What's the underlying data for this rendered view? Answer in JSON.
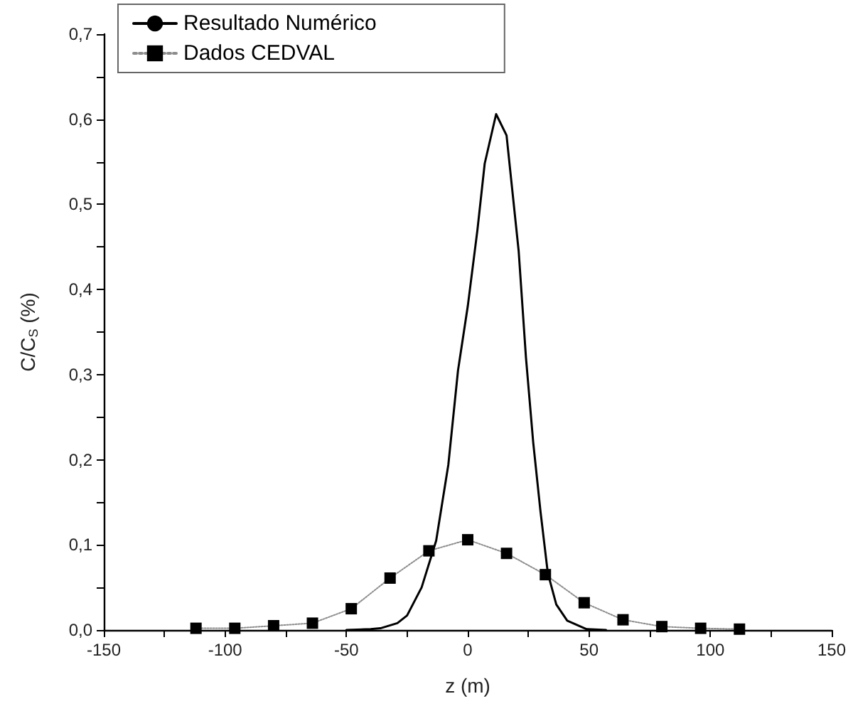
{
  "chart_data": {
    "type": "line",
    "xlabel": "z (m)",
    "ylabel": "C/C$_{S}$ (%)",
    "xlim": [
      -150,
      150
    ],
    "ylim": [
      0,
      0.7
    ],
    "xticks": [
      -150,
      {
        "value": -125,
        "label": null
      },
      -100,
      {
        "value": -75,
        "label": null
      },
      -50,
      {
        "value": -25,
        "label": null
      },
      0,
      {
        "value": 25,
        "label": null
      },
      50,
      {
        "value": 75,
        "label": null
      },
      100,
      {
        "value": 125,
        "label": null
      },
      150
    ],
    "yticks": [
      {
        "value": 0,
        "label": "0,0"
      },
      {
        "value": 0.05,
        "label": null
      },
      {
        "value": 0.1,
        "label": "0,1"
      },
      {
        "value": 0.15,
        "label": null
      },
      {
        "value": 0.2,
        "label": "0,2"
      },
      {
        "value": 0.25,
        "label": null
      },
      {
        "value": 0.3,
        "label": "0,3"
      },
      {
        "value": 0.35,
        "label": null
      },
      {
        "value": 0.4,
        "label": "0,4"
      },
      {
        "value": 0.45,
        "label": null
      },
      {
        "value": 0.5,
        "label": "0,5"
      },
      {
        "value": 0.55,
        "label": null
      },
      {
        "value": 0.6,
        "label": "0,6"
      },
      {
        "value": 0.65,
        "label": null
      },
      {
        "value": 0.7,
        "label": "0,7"
      }
    ],
    "legend": "top left",
    "grid": false,
    "series": [
      {
        "name": "Resultado Numérico",
        "color": "#000000",
        "marker": "none",
        "line_style": "solid",
        "x": [
          -50,
          -40,
          -36,
          -29,
          -25,
          -19,
          -13,
          -8,
          -4,
          0,
          4,
          7,
          11.7,
          16,
          21,
          24,
          27,
          30,
          33,
          36.5,
          41,
          49,
          57
        ],
        "values": [
          0,
          0.001,
          0.002,
          0.008,
          0.017,
          0.05,
          0.105,
          0.194,
          0.305,
          0.38,
          0.47,
          0.548,
          0.606,
          0.581,
          0.445,
          0.32,
          0.22,
          0.139,
          0.067,
          0.03,
          0.011,
          0.001,
          0
        ]
      },
      {
        "name": "Dados CEDVAL",
        "color": "#000000",
        "marker": "square",
        "line_style": "dotted",
        "x": [
          -112,
          -96,
          -80,
          -64,
          -48,
          -32,
          -16,
          0,
          16,
          32,
          48,
          64,
          80,
          96,
          112
        ],
        "values": [
          0.002,
          0.002,
          0.005,
          0.008,
          0.025,
          0.061,
          0.093,
          0.106,
          0.09,
          0.065,
          0.032,
          0.012,
          0.004,
          0.002,
          0.001
        ]
      }
    ]
  }
}
